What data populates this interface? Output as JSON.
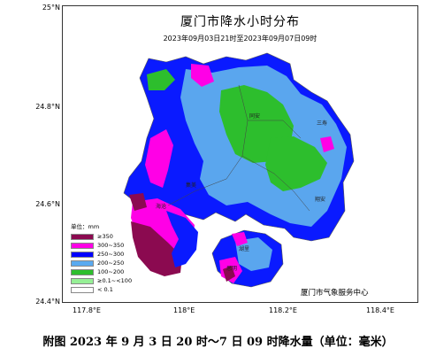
{
  "map": {
    "title": "厦门市降水小时分布",
    "subtitle": "2023年09月03日21时至2023年09月07日09时",
    "agency": "厦门市气象服务中心",
    "lat_ticks": [
      "25°N",
      "24.8°N",
      "24.6°N",
      "24.4°N"
    ],
    "lon_ticks": [
      "117.8°E",
      "118°E",
      "118.2°E",
      "118.4°E"
    ],
    "places": [
      "同安",
      "翔安",
      "集美",
      "海沧",
      "湖里",
      "思明",
      "三寿"
    ],
    "legend": {
      "title": "单位：mm",
      "items": [
        {
          "label": "≥350",
          "color": "#8b0a50"
        },
        {
          "label": "300~350",
          "color": "#ff00e6"
        },
        {
          "label": "250~300",
          "color": "#0000ff"
        },
        {
          "label": "200~250",
          "color": "#5aaaf0"
        },
        {
          "label": "100~200",
          "color": "#2dbe2d"
        },
        {
          "label": "≥0.1~<100",
          "color": "#96f096"
        },
        {
          "label": "< 0.1",
          "color": "#ffffff"
        }
      ]
    }
  },
  "caption": "附图   2023 年 9 月 3 日 20 时～7 日 09 时降水量（单位：毫米）"
}
